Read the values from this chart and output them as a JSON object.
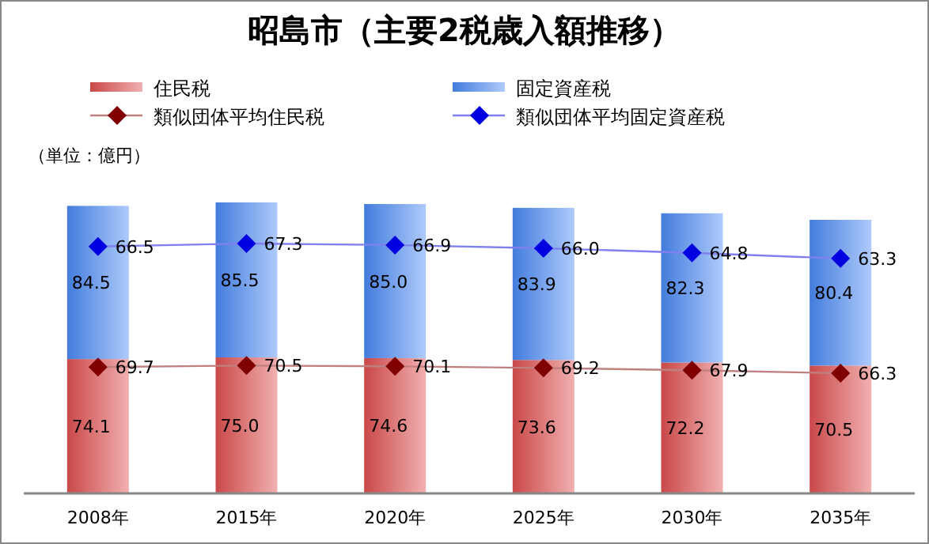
{
  "chart_data": {
    "type": "bar",
    "title": "昭島市（主要2税歳入額推移）",
    "annotations": [
      "（単位：億円）"
    ],
    "categories": [
      "2008年",
      "2015年",
      "2020年",
      "2025年",
      "2030年",
      "2035年"
    ],
    "series": [
      {
        "name": "住民税",
        "color": "#e05050",
        "values": [
          74.1,
          75.0,
          74.6,
          73.6,
          72.2,
          70.5
        ],
        "value_labels": [
          "74.1",
          "75.0",
          "74.6",
          "73.6",
          "72.2",
          "70.5"
        ]
      },
      {
        "name": "固定資産税",
        "color": "#4a8af5",
        "values": [
          84.5,
          85.5,
          85.0,
          83.9,
          82.3,
          80.4
        ],
        "value_labels": [
          "84.5",
          "85.5",
          "85.0",
          "83.9",
          "82.3",
          "80.4"
        ]
      },
      {
        "name": "類似団体平均住民税",
        "type": "line",
        "color": "#800000",
        "values": [
          69.7,
          70.5,
          70.1,
          69.2,
          67.9,
          66.3
        ],
        "value_labels": [
          "69.7",
          "70.5",
          "70.1",
          "69.2",
          "67.9",
          "66.3"
        ]
      },
      {
        "name": "類似団体平均固定資産税",
        "type": "line",
        "axis": "y2",
        "color": "#0000e0",
        "values": [
          66.5,
          67.3,
          66.9,
          66.0,
          64.8,
          63.3
        ],
        "value_labels": [
          "66.5",
          "67.3",
          "66.9",
          "66.0",
          "64.8",
          "63.3"
        ]
      }
    ],
    "stacked": true,
    "marker": "diamond",
    "legend": "top",
    "tick_labels": "x"
  }
}
